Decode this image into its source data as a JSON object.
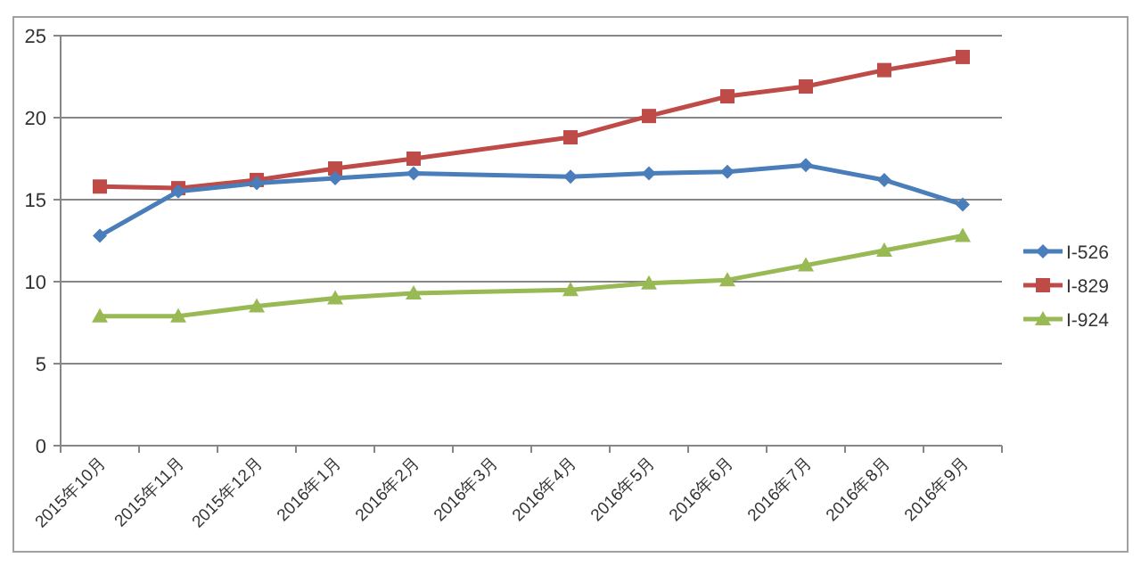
{
  "chart_data": {
    "type": "line",
    "categories": [
      "2015年10月",
      "2015年11月",
      "2015年12月",
      "2016年1月",
      "2016年2月",
      "2016年3月",
      "2016年4月",
      "2016年5月",
      "2016年6月",
      "2016年7月",
      "2016年8月",
      "2016年9月"
    ],
    "series": [
      {
        "name": "I-526",
        "color": "#4a7ebb",
        "marker": "diamond",
        "values": [
          12.8,
          15.5,
          16.0,
          16.3,
          16.6,
          null,
          16.4,
          16.6,
          16.7,
          17.1,
          16.2,
          14.7
        ]
      },
      {
        "name": "I-829",
        "color": "#be4b48",
        "marker": "square",
        "values": [
          15.8,
          15.7,
          16.2,
          16.9,
          17.5,
          null,
          18.8,
          20.1,
          21.3,
          21.9,
          22.9,
          23.7
        ]
      },
      {
        "name": "I-924",
        "color": "#98b954",
        "marker": "triangle",
        "values": [
          7.9,
          7.9,
          8.5,
          9.0,
          9.3,
          null,
          9.5,
          9.9,
          10.1,
          11.0,
          11.9,
          12.8
        ]
      }
    ],
    "ylim": [
      0,
      25
    ],
    "yticks": [
      0,
      5,
      10,
      15,
      20,
      25
    ],
    "grid": "y",
    "legend": "right"
  }
}
